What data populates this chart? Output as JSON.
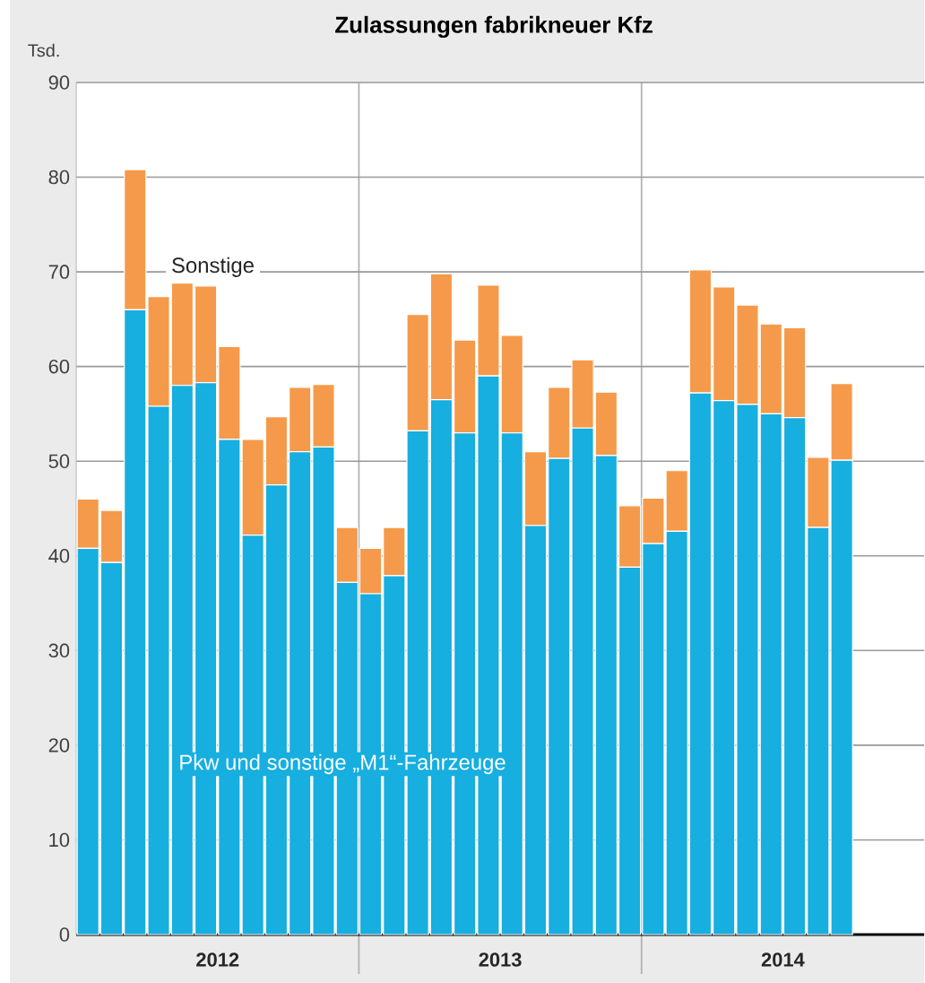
{
  "chart_data": {
    "type": "bar",
    "stacked": true,
    "title": "Zulassungen fabrikneuer Kfz",
    "ylabel": "Tsd.",
    "categories": [
      null,
      null,
      null,
      null,
      null,
      null,
      null,
      null,
      null,
      null,
      null,
      null,
      null,
      null,
      null,
      null,
      null,
      null,
      null,
      null,
      null,
      null,
      null,
      null,
      null,
      null,
      null,
      null,
      null,
      null,
      null,
      null,
      null,
      null,
      null,
      null
    ],
    "annotations": [
      "2012",
      "2013",
      "2014"
    ],
    "series": [
      {
        "name": "Pkw und sonstige „M1“-Fahrzeuge",
        "color": "#17aee0",
        "values": [
          40.8,
          39.3,
          66.0,
          55.8,
          58.0,
          58.3,
          52.3,
          42.2,
          47.5,
          51.0,
          51.5,
          37.2,
          36.0,
          37.9,
          53.2,
          56.5,
          53.0,
          59.0,
          53.0,
          43.2,
          50.3,
          53.5,
          50.6,
          38.8,
          41.3,
          42.6,
          57.2,
          56.4,
          56.0,
          55.0,
          54.6,
          43.0,
          50.1,
          null,
          null,
          null
        ]
      },
      {
        "name": "Sonstige",
        "color": "#f59a4a",
        "values": [
          5.2,
          5.5,
          14.8,
          11.6,
          10.8,
          10.2,
          9.8,
          10.1,
          7.2,
          6.8,
          6.6,
          5.8,
          4.8,
          5.1,
          12.3,
          13.3,
          9.8,
          9.6,
          10.3,
          7.8,
          7.5,
          7.2,
          6.7,
          6.5,
          4.8,
          6.4,
          13.0,
          12.0,
          10.5,
          9.5,
          9.5,
          7.4,
          8.1,
          null,
          null,
          null
        ]
      }
    ],
    "ylim": [
      0,
      90
    ],
    "yticks": [
      0,
      10,
      20,
      30,
      40,
      50,
      60,
      70,
      80,
      90
    ],
    "grid": "y"
  }
}
